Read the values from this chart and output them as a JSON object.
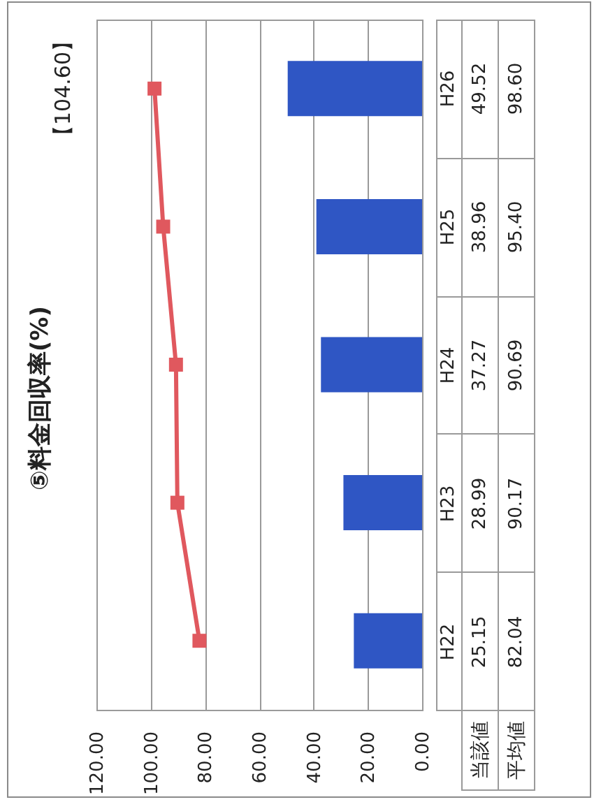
{
  "chart_data": {
    "type": "bar",
    "orientation": "horizontal",
    "title": "⑤料金回収率(%)",
    "categories": [
      "H26",
      "H25",
      "H24",
      "H23",
      "H22"
    ],
    "series": [
      {
        "name": "当該値",
        "color": "#2f56c4",
        "values": [
          49.52,
          38.96,
          37.27,
          28.99,
          25.15
        ],
        "value_labels": [
          "49.52",
          "38.96",
          "37.27",
          "28.99",
          "25.15"
        ]
      },
      {
        "name": "平均値",
        "type": "line",
        "color": "#e0585e",
        "values": [
          98.6,
          95.4,
          90.69,
          90.17,
          82.04
        ],
        "value_labels": [
          "98.60",
          "95.40",
          "90.69",
          "90.17",
          "82.04"
        ]
      }
    ],
    "xlim": [
      120,
      0
    ],
    "xticks": [
      {
        "value": 120,
        "label": "120.00"
      },
      {
        "value": 100,
        "label": "100.00"
      },
      {
        "value": 80,
        "label": "80.00"
      },
      {
        "value": 60,
        "label": "60.00"
      },
      {
        "value": 40,
        "label": "40.00"
      },
      {
        "value": 20,
        "label": "20.00"
      },
      {
        "value": 0,
        "label": "0.00"
      }
    ],
    "grid": "x",
    "marker": "square",
    "annotations": [
      "【104.60】"
    ]
  }
}
